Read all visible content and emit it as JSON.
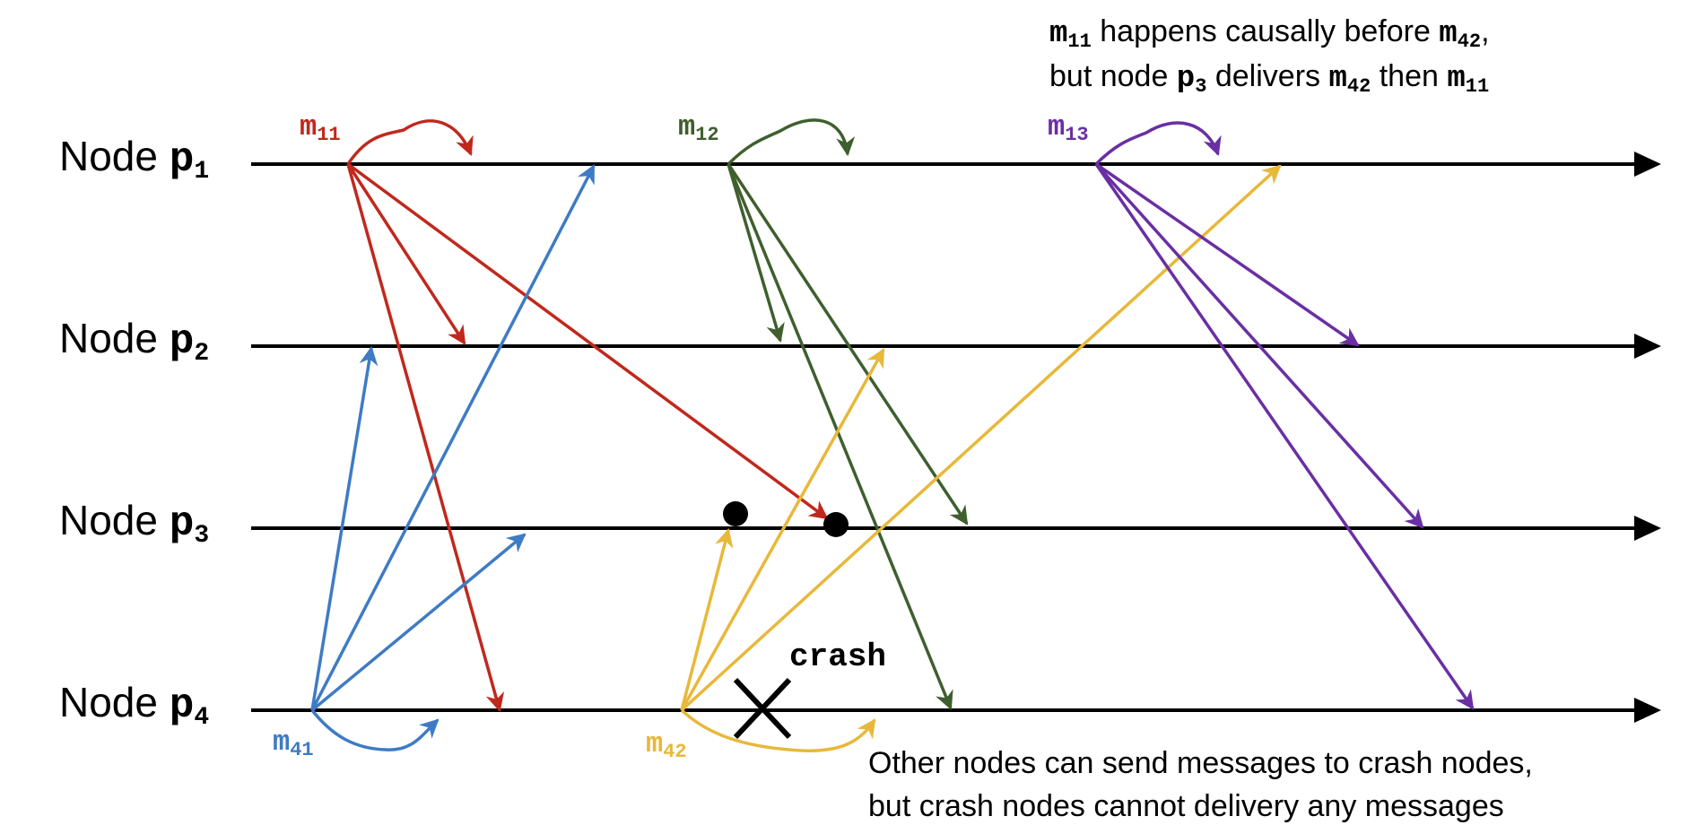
{
  "colors": {
    "m11": "#C0281C",
    "m12": "#3F5F2E",
    "m13": "#6A2FA3",
    "m41": "#3E7BC4",
    "m42": "#E8B83A",
    "timeline": "#000000"
  },
  "nodes": [
    {
      "id": "p1",
      "prefix": "Node ",
      "name": "p",
      "sub": "1"
    },
    {
      "id": "p2",
      "prefix": "Node ",
      "name": "p",
      "sub": "2"
    },
    {
      "id": "p3",
      "prefix": "Node ",
      "name": "p",
      "sub": "3"
    },
    {
      "id": "p4",
      "prefix": "Node ",
      "name": "p",
      "sub": "4"
    }
  ],
  "messages": [
    {
      "id": "m11",
      "name": "m",
      "sub": "11",
      "from": "p1",
      "to": [
        "p1",
        "p2",
        "p3",
        "p4"
      ]
    },
    {
      "id": "m12",
      "name": "m",
      "sub": "12",
      "from": "p1",
      "to": [
        "p1",
        "p2",
        "p3",
        "p4"
      ]
    },
    {
      "id": "m13",
      "name": "m",
      "sub": "13",
      "from": "p1",
      "to": [
        "p1",
        "p2",
        "p3",
        "p4"
      ]
    },
    {
      "id": "m41",
      "name": "m",
      "sub": "41",
      "from": "p4",
      "to": [
        "p4",
        "p1",
        "p2",
        "p3"
      ]
    },
    {
      "id": "m42",
      "name": "m",
      "sub": "42",
      "from": "p4",
      "to": [
        "p4",
        "p1",
        "p2",
        "p3"
      ]
    }
  ],
  "crash_label": "crash",
  "annotation_top": {
    "line1": {
      "a": "m",
      "a_sub": "11",
      "b": " happens causally before ",
      "c": "m",
      "c_sub": "42",
      "d": ","
    },
    "line2": {
      "a": "but node ",
      "b": "p",
      "b_sub": "3",
      "c": " delivers ",
      "d": "m",
      "d_sub": "42",
      "e": " then ",
      "f": "m",
      "f_sub": "11"
    }
  },
  "annotation_bottom": {
    "line1": "Other nodes can send messages to crash nodes,",
    "line2": "but crash nodes cannot delivery any messages"
  }
}
